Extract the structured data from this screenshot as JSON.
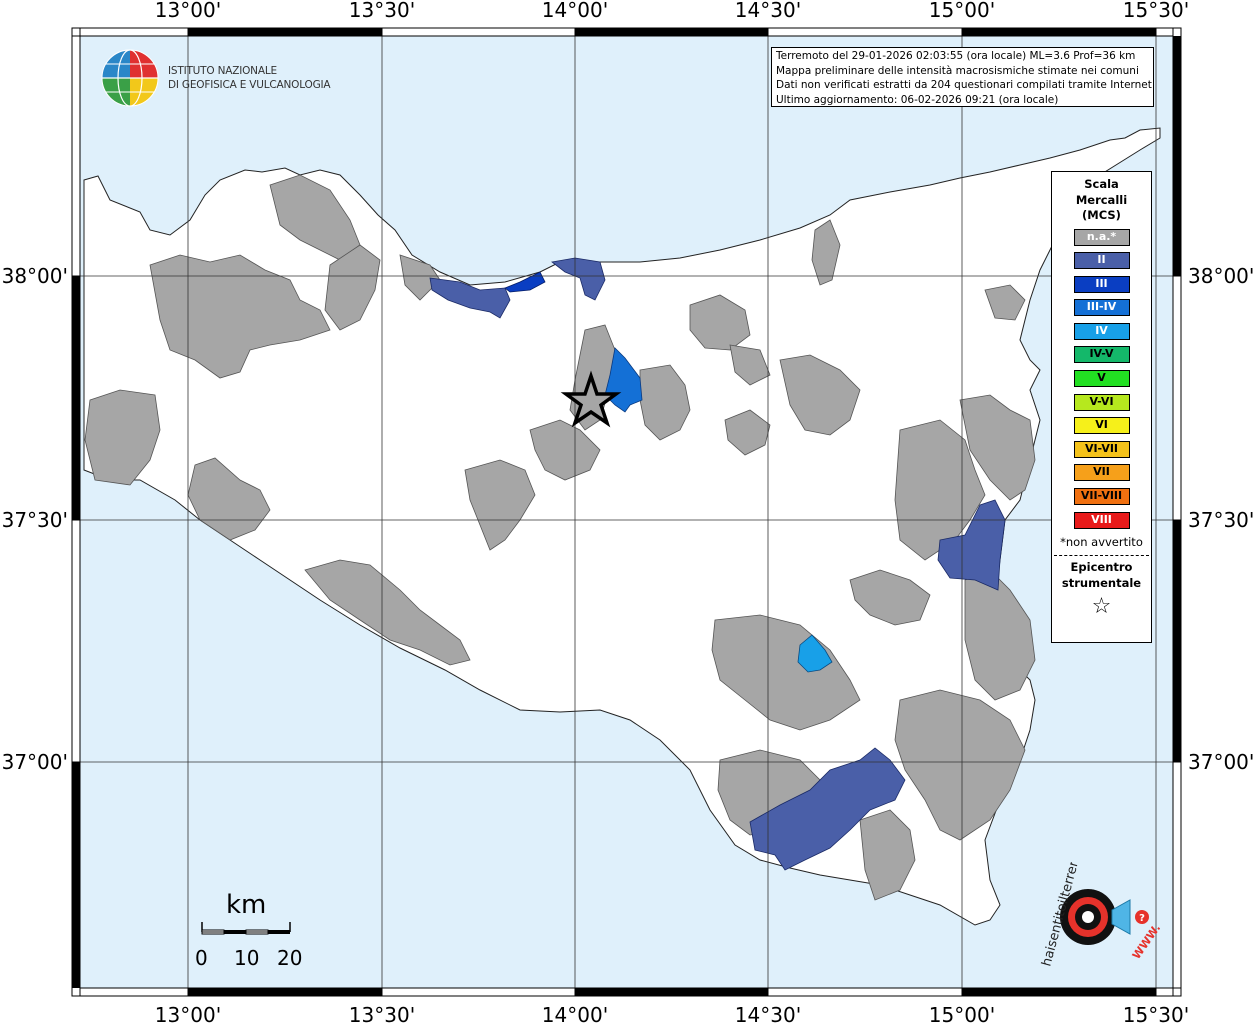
{
  "map": {
    "lon_ticks": [
      "13°00'",
      "13°30'",
      "14°00'",
      "14°30'",
      "15°00'",
      "15°30'"
    ],
    "lat_ticks": [
      "38°00'",
      "37°30'",
      "37°00'"
    ],
    "colors": {
      "sea": "#dff0fb",
      "land": "#ffffff",
      "na": "#a6a6a6",
      "II": "#4a5fa8",
      "III": "#0a3ec2",
      "III-IV": "#1470d6",
      "IV": "#18a0e8"
    },
    "epicenter_symbol": "star"
  },
  "institute": {
    "line1": "ISTITUTO NAZIONALE",
    "line2": "DI GEOFISICA E VULCANOLOGIA",
    "logo_icon": "globe-logo-icon"
  },
  "info": {
    "line1": "Terremoto del 29-01-2026 02:03:55 (ora locale) ML=3.6 Prof=36 km",
    "line2": "Mappa preliminare delle intensità macrosismiche stimate nei comuni",
    "line3": "Dati non verificati estratti da 204 questionari compilati tramite Internet.",
    "line4": "Ultimo aggiornamento: 06-02-2026 09:21 (ora locale)"
  },
  "legend": {
    "title1": "Scala",
    "title2": "Mercalli",
    "title3": "(MCS)",
    "items": [
      {
        "label": "n.a.*",
        "color": "#a6a6a6"
      },
      {
        "label": "II",
        "color": "#4a5fa8"
      },
      {
        "label": "III",
        "color": "#0a3ec2"
      },
      {
        "label": "III-IV",
        "color": "#1470d6"
      },
      {
        "label": "IV",
        "color": "#18a0e8"
      },
      {
        "label": "IV-V",
        "color": "#14b86a"
      },
      {
        "label": "V",
        "color": "#22e022"
      },
      {
        "label": "V-VI",
        "color": "#b6e81e"
      },
      {
        "label": "VI",
        "color": "#f6f01a"
      },
      {
        "label": "VI-VII",
        "color": "#f4c21a"
      },
      {
        "label": "VII",
        "color": "#f6a01a"
      },
      {
        "label": "VII-VIII",
        "color": "#f07010"
      },
      {
        "label": "VIII",
        "color": "#e81a1a"
      }
    ],
    "note": "*non avvertito",
    "epi1": "Epicentro",
    "epi2": "strumentale",
    "star": "☆"
  },
  "scale": {
    "unit": "km",
    "labels": [
      "0",
      "10",
      "20"
    ]
  },
  "brand": {
    "text": "haisentitoilterremoto.it",
    "url": "WWW.",
    "logo_icon": "target-logo-icon"
  }
}
